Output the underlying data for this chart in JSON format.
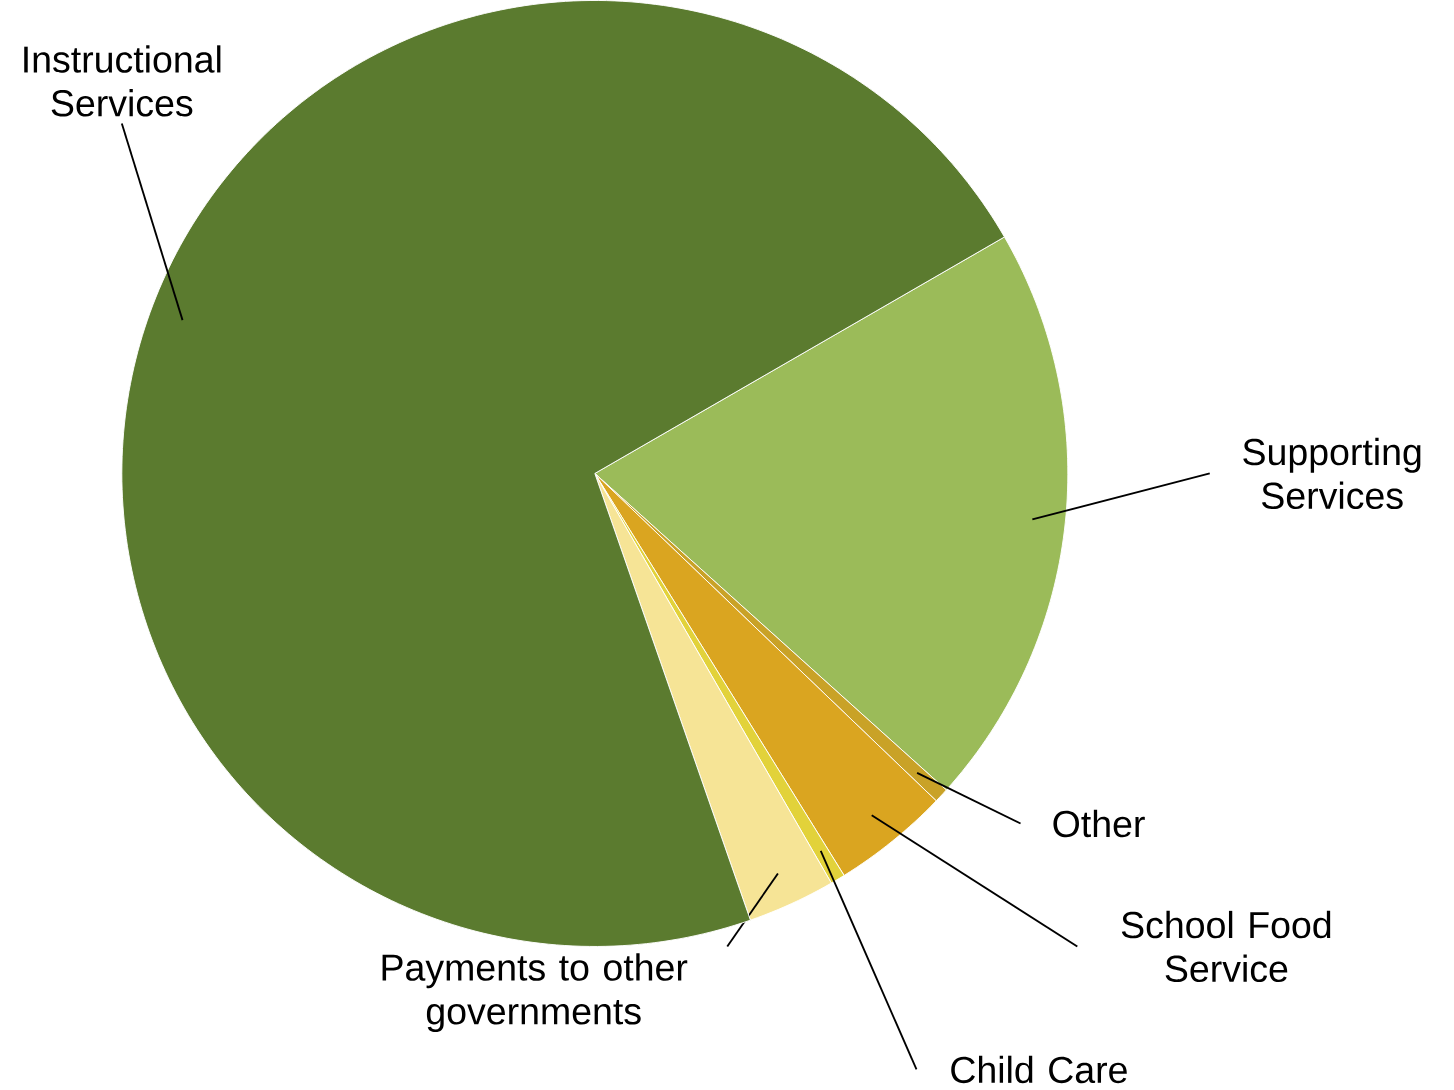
{
  "chart_data": {
    "type": "pie",
    "categories": [
      "Supporting Services",
      "Other",
      "School Food Service",
      "Child Care",
      "Payments to other governments",
      "Instructional Services"
    ],
    "values": [
      20,
      0.5,
      4,
      0.5,
      3,
      72
    ],
    "colors": [
      "#9bbb59",
      "#c9a227",
      "#daa520",
      "#e2d23a",
      "#f6e496",
      "#5b7b2f"
    ]
  }
}
